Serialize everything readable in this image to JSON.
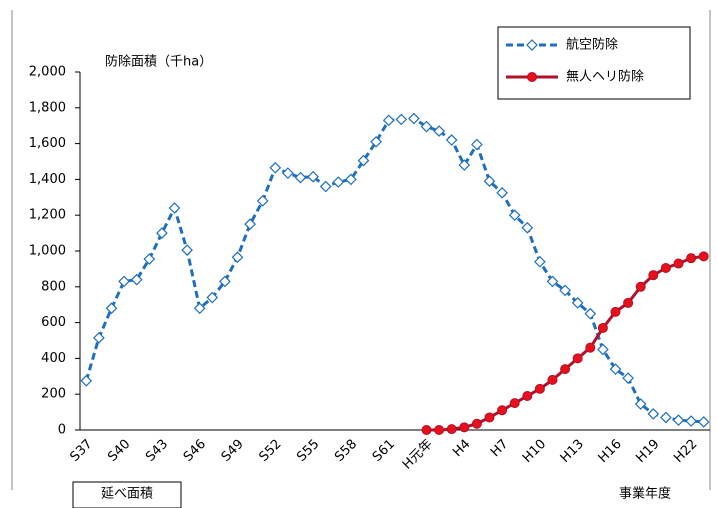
{
  "chart_data": {
    "type": "line",
    "y_axis_label": "防除面積（千ha）",
    "x_axis_label": "事業年度",
    "annotation": "延べ面積",
    "categories": [
      "S37",
      null,
      null,
      "S40",
      null,
      null,
      "S43",
      null,
      null,
      "S46",
      null,
      null,
      "S49",
      null,
      null,
      "S52",
      null,
      null,
      "S55",
      null,
      null,
      "S58",
      null,
      null,
      "S61",
      null,
      null,
      "H元年",
      null,
      null,
      "H4",
      null,
      null,
      "H7",
      null,
      null,
      "H10",
      null,
      null,
      "H13",
      null,
      null,
      "H16",
      null,
      null,
      "H19",
      null,
      null,
      "H22",
      null
    ],
    "series": [
      {
        "name": "航空防除",
        "color": "#1f6fc0",
        "marker": "diamond",
        "dashed": true,
        "values": [
          275,
          515,
          680,
          830,
          840,
          955,
          1100,
          1240,
          1005,
          680,
          740,
          830,
          965,
          1150,
          1280,
          1465,
          1435,
          1410,
          1415,
          1360,
          1385,
          1400,
          1505,
          1610,
          1730,
          1735,
          1740,
          1695,
          1670,
          1620,
          1480,
          1595,
          1390,
          1325,
          1200,
          1130,
          940,
          830,
          780,
          710,
          650,
          450,
          340,
          290,
          145,
          90,
          70,
          55,
          50,
          45
        ]
      },
      {
        "name": "無人ヘリ防除",
        "color": "#b0102a",
        "marker": "circle",
        "dashed": false,
        "values": [
          null,
          null,
          null,
          null,
          null,
          null,
          null,
          null,
          null,
          null,
          null,
          null,
          null,
          null,
          null,
          null,
          null,
          null,
          null,
          null,
          null,
          null,
          null,
          null,
          null,
          null,
          null,
          0,
          0,
          5,
          15,
          35,
          70,
          110,
          150,
          190,
          230,
          280,
          340,
          400,
          460,
          570,
          660,
          710,
          800,
          865,
          905,
          930,
          960,
          970
        ]
      }
    ],
    "ylim": [
      0,
      2000
    ],
    "yticks": [
      0,
      200,
      400,
      600,
      800,
      {
        "value": 1000,
        "label": "1,000"
      },
      {
        "value": 1200,
        "label": "1,200"
      },
      {
        "value": 1400,
        "label": "1,400"
      },
      {
        "value": 1600,
        "label": "1,600"
      },
      {
        "value": 1800,
        "label": "1,800"
      },
      {
        "value": 2000,
        "label": "2,000"
      }
    ]
  }
}
